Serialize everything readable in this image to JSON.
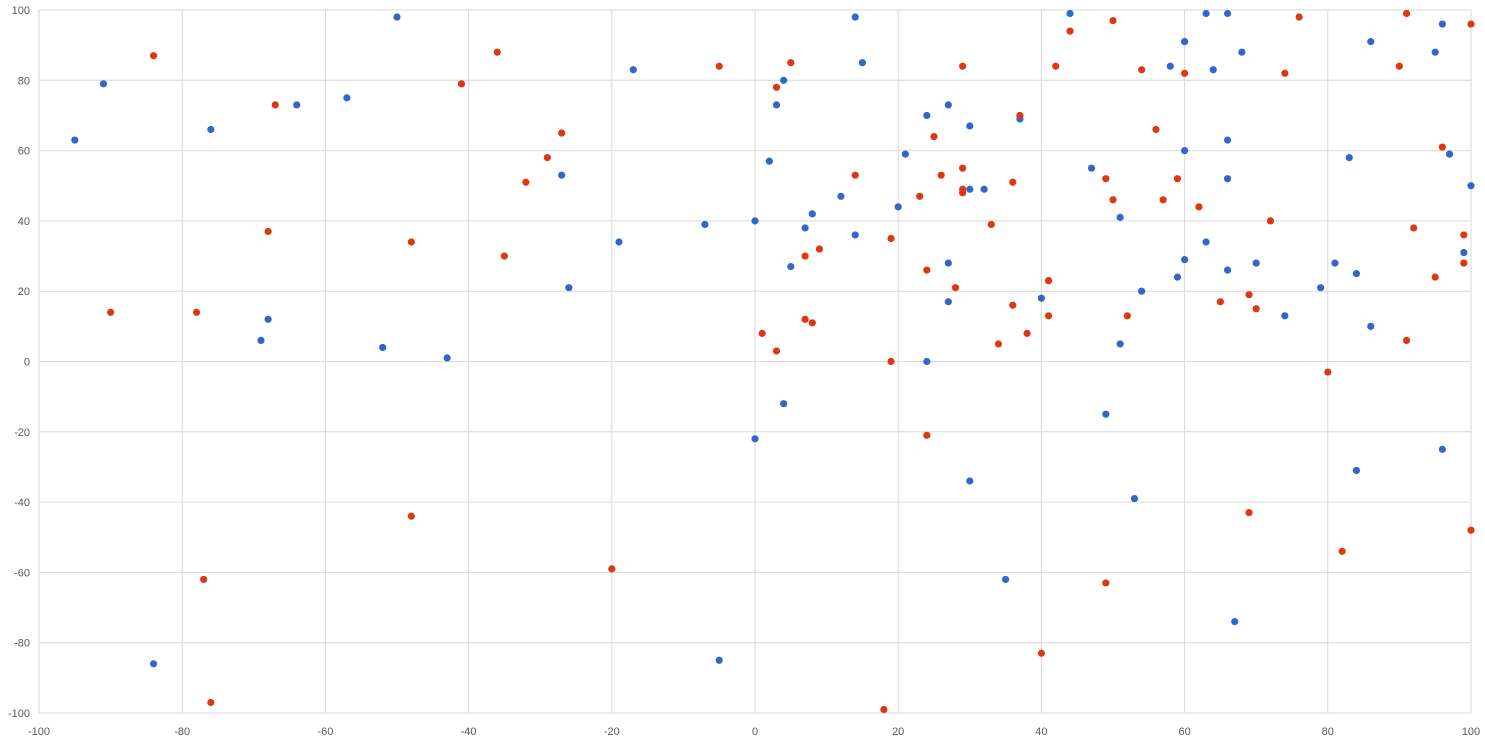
{
  "chart_data": {
    "type": "scatter",
    "title": "",
    "xlabel": "",
    "ylabel": "",
    "xlim": [
      -100,
      100
    ],
    "ylim": [
      -100,
      100
    ],
    "x_ticks": [
      -100,
      -80,
      -60,
      -40,
      -20,
      0,
      20,
      40,
      60,
      80,
      100
    ],
    "y_ticks": [
      -100,
      -80,
      -60,
      -40,
      -20,
      0,
      20,
      40,
      60,
      80,
      100
    ],
    "grid": true,
    "legend": "none",
    "series": [
      {
        "color": "#3366cc",
        "points": [
          [
            -95,
            63
          ],
          [
            -91,
            79
          ],
          [
            -84,
            -86
          ],
          [
            -76,
            66
          ],
          [
            -69,
            6
          ],
          [
            -68,
            12
          ],
          [
            -64,
            73
          ],
          [
            -57,
            75
          ],
          [
            -52,
            4
          ],
          [
            -50,
            98
          ],
          [
            -43,
            1
          ],
          [
            -27,
            53
          ],
          [
            -26,
            21
          ],
          [
            -19,
            34
          ],
          [
            -17,
            83
          ],
          [
            -7,
            39
          ],
          [
            -5,
            -85
          ],
          [
            0,
            40
          ],
          [
            0,
            -22
          ],
          [
            2,
            57
          ],
          [
            3,
            73
          ],
          [
            4,
            80
          ],
          [
            4,
            -12
          ],
          [
            5,
            27
          ],
          [
            7,
            38
          ],
          [
            8,
            42
          ],
          [
            12,
            47
          ],
          [
            14,
            98
          ],
          [
            14,
            36
          ],
          [
            15,
            85
          ],
          [
            20,
            44
          ],
          [
            21,
            59
          ],
          [
            24,
            70
          ],
          [
            24,
            0
          ],
          [
            27,
            73
          ],
          [
            27,
            28
          ],
          [
            27,
            17
          ],
          [
            30,
            67
          ],
          [
            30,
            49
          ],
          [
            30,
            -34
          ],
          [
            32,
            49
          ],
          [
            35,
            -62
          ],
          [
            37,
            69
          ],
          [
            40,
            18
          ],
          [
            44,
            99
          ],
          [
            47,
            55
          ],
          [
            49,
            -15
          ],
          [
            51,
            41
          ],
          [
            51,
            5
          ],
          [
            53,
            -39
          ],
          [
            54,
            20
          ],
          [
            58,
            84
          ],
          [
            59,
            24
          ],
          [
            60,
            91
          ],
          [
            60,
            60
          ],
          [
            60,
            29
          ],
          [
            63,
            99
          ],
          [
            63,
            34
          ],
          [
            64,
            83
          ],
          [
            66,
            99
          ],
          [
            66,
            63
          ],
          [
            66,
            52
          ],
          [
            66,
            26
          ],
          [
            67,
            -74
          ],
          [
            68,
            88
          ],
          [
            70,
            28
          ],
          [
            74,
            13
          ],
          [
            79,
            21
          ],
          [
            81,
            28
          ],
          [
            83,
            58
          ],
          [
            84,
            25
          ],
          [
            84,
            -31
          ],
          [
            86,
            91
          ],
          [
            86,
            10
          ],
          [
            95,
            88
          ],
          [
            96,
            96
          ],
          [
            96,
            -25
          ],
          [
            97,
            59
          ],
          [
            99,
            31
          ],
          [
            100,
            50
          ]
        ]
      },
      {
        "color": "#dc3912",
        "points": [
          [
            -90,
            14
          ],
          [
            -84,
            87
          ],
          [
            -78,
            14
          ],
          [
            -77,
            -62
          ],
          [
            -76,
            -97
          ],
          [
            -68,
            37
          ],
          [
            -67,
            73
          ],
          [
            -48,
            34
          ],
          [
            -48,
            -44
          ],
          [
            -41,
            79
          ],
          [
            -36,
            88
          ],
          [
            -35,
            30
          ],
          [
            -32,
            51
          ],
          [
            -29,
            58
          ],
          [
            -27,
            65
          ],
          [
            -20,
            -59
          ],
          [
            -5,
            84
          ],
          [
            1,
            8
          ],
          [
            3,
            78
          ],
          [
            3,
            3
          ],
          [
            5,
            85
          ],
          [
            7,
            30
          ],
          [
            7,
            12
          ],
          [
            8,
            11
          ],
          [
            9,
            32
          ],
          [
            14,
            53
          ],
          [
            18,
            -99
          ],
          [
            19,
            35
          ],
          [
            19,
            0
          ],
          [
            23,
            47
          ],
          [
            24,
            26
          ],
          [
            24,
            -21
          ],
          [
            25,
            64
          ],
          [
            26,
            53
          ],
          [
            28,
            21
          ],
          [
            29,
            84
          ],
          [
            29,
            55
          ],
          [
            29,
            49
          ],
          [
            29,
            48
          ],
          [
            33,
            39
          ],
          [
            34,
            5
          ],
          [
            36,
            51
          ],
          [
            36,
            16
          ],
          [
            37,
            70
          ],
          [
            38,
            8
          ],
          [
            40,
            -83
          ],
          [
            41,
            23
          ],
          [
            41,
            13
          ],
          [
            42,
            84
          ],
          [
            44,
            94
          ],
          [
            49,
            52
          ],
          [
            49,
            -63
          ],
          [
            50,
            97
          ],
          [
            50,
            46
          ],
          [
            52,
            13
          ],
          [
            54,
            83
          ],
          [
            56,
            66
          ],
          [
            57,
            46
          ],
          [
            59,
            52
          ],
          [
            60,
            82
          ],
          [
            62,
            44
          ],
          [
            65,
            17
          ],
          [
            69,
            19
          ],
          [
            69,
            -43
          ],
          [
            70,
            15
          ],
          [
            72,
            40
          ],
          [
            74,
            82
          ],
          [
            76,
            98
          ],
          [
            80,
            -3
          ],
          [
            82,
            -54
          ],
          [
            90,
            84
          ],
          [
            91,
            99
          ],
          [
            91,
            6
          ],
          [
            92,
            38
          ],
          [
            95,
            24
          ],
          [
            96,
            61
          ],
          [
            99,
            36
          ],
          [
            99,
            28
          ],
          [
            100,
            96
          ],
          [
            100,
            -48
          ]
        ]
      }
    ]
  }
}
